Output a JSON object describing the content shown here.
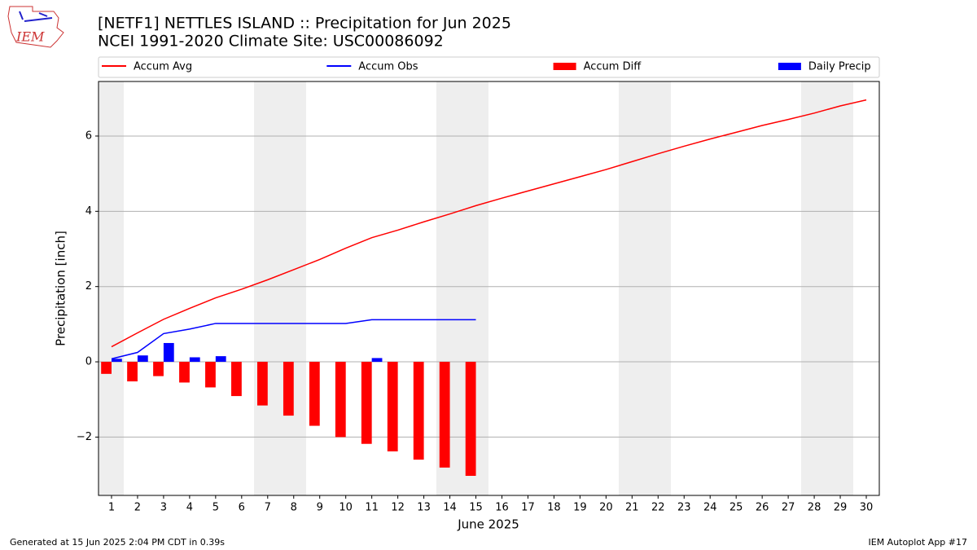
{
  "chart_data": {
    "type": "combo",
    "title": "[NETF1] NETTLES ISLAND :: Precipitation for Jun 2025",
    "subtitle": "NCEI 1991-2020 Climate Site: USC00086092",
    "logo_text": "IEM",
    "x_label": "June 2025",
    "y_label": "Precipitation [inch]",
    "footer_left": "Generated at 15 Jun 2025 2:04 PM CDT in 0.39s",
    "footer_right": "IEM Autoplot App #17",
    "x": [
      1,
      2,
      3,
      4,
      5,
      6,
      7,
      8,
      9,
      10,
      11,
      12,
      13,
      14,
      15,
      16,
      17,
      18,
      19,
      20,
      21,
      22,
      23,
      24,
      25,
      26,
      27,
      28,
      29,
      30
    ],
    "xlim": [
      0.5,
      30.5
    ],
    "xticks": [
      1,
      2,
      3,
      4,
      5,
      6,
      7,
      8,
      9,
      10,
      11,
      12,
      13,
      14,
      15,
      16,
      17,
      18,
      19,
      20,
      21,
      22,
      23,
      24,
      25,
      26,
      27,
      28,
      29,
      30
    ],
    "ylim": [
      -3.55,
      7.45
    ],
    "yticks": [
      {
        "value": -2,
        "label": "−2"
      },
      0,
      2,
      4,
      6
    ],
    "grid": true,
    "legend": "top",
    "series": [
      {
        "name": "Accum Avg",
        "type": "line",
        "color": "#ff0000",
        "values": [
          0.4,
          0.77,
          1.13,
          1.42,
          1.7,
          1.93,
          2.18,
          2.45,
          2.72,
          3.02,
          3.3,
          3.5,
          3.72,
          3.93,
          4.15,
          4.35,
          4.54,
          4.73,
          4.92,
          5.11,
          5.32,
          5.53,
          5.73,
          5.92,
          6.1,
          6.28,
          6.44,
          6.61,
          6.8,
          6.96
        ]
      },
      {
        "name": "Accum Obs",
        "type": "line",
        "color": "#0000ff",
        "values": [
          0.08,
          0.25,
          0.75,
          0.87,
          1.02,
          1.02,
          1.02,
          1.02,
          1.02,
          1.02,
          1.12,
          1.12,
          1.12,
          1.12,
          1.12,
          null,
          null,
          null,
          null,
          null,
          null,
          null,
          null,
          null,
          null,
          null,
          null,
          null,
          null,
          null
        ]
      },
      {
        "name": "Accum Diff",
        "type": "bar",
        "side": "left",
        "color": "#ff0000",
        "values": [
          -0.32,
          -0.52,
          -0.38,
          -0.55,
          -0.68,
          -0.91,
          -1.16,
          -1.43,
          -1.7,
          -2.0,
          -2.18,
          -2.38,
          -2.6,
          -2.81,
          -3.03,
          null,
          null,
          null,
          null,
          null,
          null,
          null,
          null,
          null,
          null,
          null,
          null,
          null,
          null,
          null
        ]
      },
      {
        "name": "Daily Precip",
        "type": "bar",
        "side": "right",
        "color": "#0000ff",
        "values": [
          0.08,
          0.17,
          0.5,
          0.12,
          0.15,
          0,
          0,
          0,
          0,
          0,
          0.1,
          0,
          0,
          0,
          0,
          null,
          null,
          null,
          null,
          null,
          null,
          null,
          null,
          null,
          null,
          null,
          null,
          null,
          null,
          null
        ]
      }
    ]
  }
}
